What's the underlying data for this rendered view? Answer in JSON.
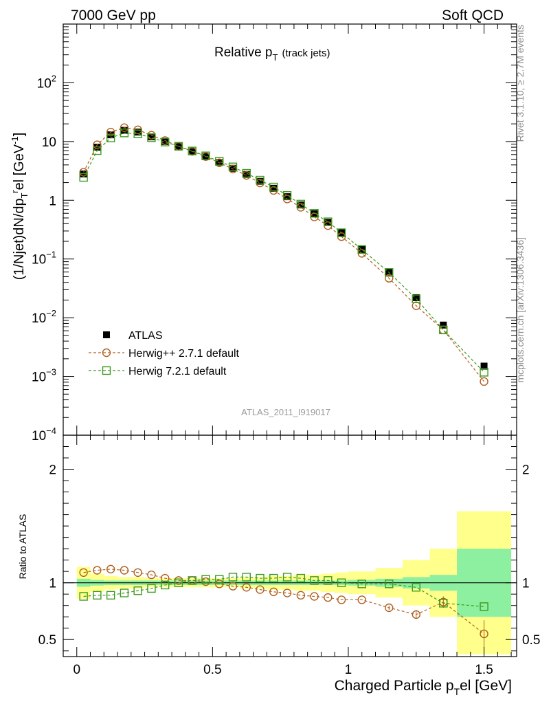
{
  "header": {
    "left": "7000 GeV pp",
    "right": "Soft QCD"
  },
  "side_labels": {
    "rivet": "Rivet 3.1.10, ≥ 2.7M events",
    "mcplots": "mcplots.cern.ch [arXiv:1306.3436]"
  },
  "chart_data": {
    "type": "scatter",
    "title": "Relative p",
    "title_sub": "T",
    "title_suffix": "(track jets)",
    "analysis_id": "ATLAS_2011_I919017",
    "xlabel": "Charged Particle p",
    "xlabel_sub": "T",
    "xlabel_suffix": "el [GeV]",
    "ylabel": "(1/Njet)dN/dp",
    "ylabel_sub": "T",
    "ylabel_sup": "r",
    "ylabel_suffix": "el [GeV",
    "ylabel_sup2": "-1",
    "ylabel_end": "]",
    "ratio_ylabel": "Ratio to ATLAS",
    "xlim": [
      -0.05,
      1.62
    ],
    "ylim": [
      0.0001,
      1000
    ],
    "yscale": "log",
    "ratio_ylim": [
      0.35,
      2.3
    ],
    "x_ticks": [
      {
        "value": 0,
        "label": "0"
      },
      {
        "value": 0.5,
        "label": "0.5"
      },
      {
        "value": 1,
        "label": "1"
      },
      {
        "value": 1.5,
        "label": "1.5"
      }
    ],
    "y_ticks": [
      {
        "value": 0.0001,
        "base": "10",
        "exp": "−4"
      },
      {
        "value": 0.001,
        "base": "10",
        "exp": "−3"
      },
      {
        "value": 0.01,
        "base": "10",
        "exp": "−2"
      },
      {
        "value": 0.1,
        "base": "10",
        "exp": "−1"
      },
      {
        "value": 1,
        "base": "1",
        "exp": ""
      },
      {
        "value": 10,
        "base": "10",
        "exp": ""
      },
      {
        "value": 100,
        "base": "10",
        "exp": "2"
      }
    ],
    "ratio_y_ticks": [
      {
        "value": 0.5,
        "label": "0.5"
      },
      {
        "value": 1,
        "label": "1"
      },
      {
        "value": 2,
        "label": "2"
      }
    ],
    "x": [
      0.025,
      0.075,
      0.125,
      0.175,
      0.225,
      0.275,
      0.325,
      0.375,
      0.425,
      0.475,
      0.525,
      0.575,
      0.625,
      0.675,
      0.725,
      0.775,
      0.825,
      0.875,
      0.925,
      0.975,
      1.05,
      1.15,
      1.25,
      1.35,
      1.5
    ],
    "bin_edges": [
      0,
      0.05,
      0.1,
      0.15,
      0.2,
      0.25,
      0.3,
      0.35,
      0.4,
      0.45,
      0.5,
      0.55,
      0.6,
      0.65,
      0.7,
      0.75,
      0.8,
      0.85,
      0.9,
      0.95,
      1.0,
      1.1,
      1.2,
      1.3,
      1.4,
      1.6
    ],
    "series": [
      {
        "name": "ATLAS",
        "color": "#000000",
        "marker": "filled-square",
        "values": [
          2.8,
          8.0,
          13.0,
          15.5,
          14.5,
          12.0,
          10.0,
          8.2,
          6.7,
          5.5,
          4.4,
          3.5,
          2.75,
          2.1,
          1.6,
          1.15,
          0.83,
          0.59,
          0.42,
          0.28,
          0.145,
          0.06,
          0.022,
          0.0075,
          0.0015
        ]
      },
      {
        "name": "Herwig++ 2.7.1 default",
        "color": "#b05f1e",
        "marker": "open-circle",
        "values": [
          3.0,
          8.8,
          14.5,
          17.2,
          15.8,
          12.8,
          10.4,
          8.3,
          6.8,
          5.55,
          4.35,
          3.4,
          2.65,
          1.97,
          1.47,
          1.05,
          0.76,
          0.52,
          0.37,
          0.24,
          0.125,
          0.047,
          0.016,
          0.0062,
          0.00082
        ],
        "ratio": [
          1.09,
          1.11,
          1.12,
          1.11,
          1.09,
          1.07,
          1.04,
          1.02,
          1.02,
          1.01,
          0.99,
          0.97,
          0.96,
          0.94,
          0.92,
          0.91,
          0.89,
          0.88,
          0.87,
          0.85,
          0.85,
          0.78,
          0.72,
          0.83,
          0.55
        ],
        "ratio_err": [
          0.01,
          0.01,
          0.01,
          0.01,
          0.01,
          0.01,
          0.01,
          0.01,
          0.01,
          0.01,
          0.01,
          0.01,
          0.01,
          0.01,
          0.01,
          0.01,
          0.01,
          0.01,
          0.01,
          0.01,
          0.01,
          0.02,
          0.04,
          0.05,
          0.12
        ]
      },
      {
        "name": "Herwig 7.2.1 default",
        "color": "#3c9a1e",
        "marker": "open-square",
        "values": [
          2.45,
          7.0,
          11.5,
          14.0,
          13.5,
          11.6,
          9.8,
          8.3,
          6.9,
          5.7,
          4.6,
          3.7,
          2.88,
          2.2,
          1.68,
          1.21,
          0.86,
          0.6,
          0.43,
          0.28,
          0.145,
          0.059,
          0.021,
          0.0062,
          0.00118
        ],
        "ratio": [
          0.88,
          0.89,
          0.89,
          0.91,
          0.93,
          0.95,
          0.98,
          1.0,
          1.02,
          1.03,
          1.03,
          1.05,
          1.05,
          1.04,
          1.04,
          1.05,
          1.04,
          1.02,
          1.02,
          1.0,
          0.99,
          0.99,
          0.96,
          0.82,
          0.79
        ]
      }
    ],
    "ratio_bands": {
      "inner": [
        0.035,
        0.025,
        0.02,
        0.02,
        0.02,
        0.02,
        0.02,
        0.02,
        0.02,
        0.02,
        0.02,
        0.02,
        0.02,
        0.02,
        0.02,
        0.02,
        0.02,
        0.02,
        0.02,
        0.02,
        0.025,
        0.035,
        0.05,
        0.07,
        0.3
      ],
      "outer": [
        0.14,
        0.08,
        0.06,
        0.05,
        0.05,
        0.04,
        0.04,
        0.04,
        0.04,
        0.04,
        0.04,
        0.04,
        0.05,
        0.05,
        0.06,
        0.06,
        0.07,
        0.07,
        0.08,
        0.09,
        0.1,
        0.13,
        0.2,
        0.3,
        0.63
      ]
    },
    "legend": {
      "position": "bottom-left",
      "entries": [
        "ATLAS",
        "Herwig++ 2.7.1 default",
        "Herwig 7.2.1 default"
      ]
    },
    "band_colors": {
      "inner": "#8cf0a0",
      "outer": "#ffff8c"
    }
  }
}
